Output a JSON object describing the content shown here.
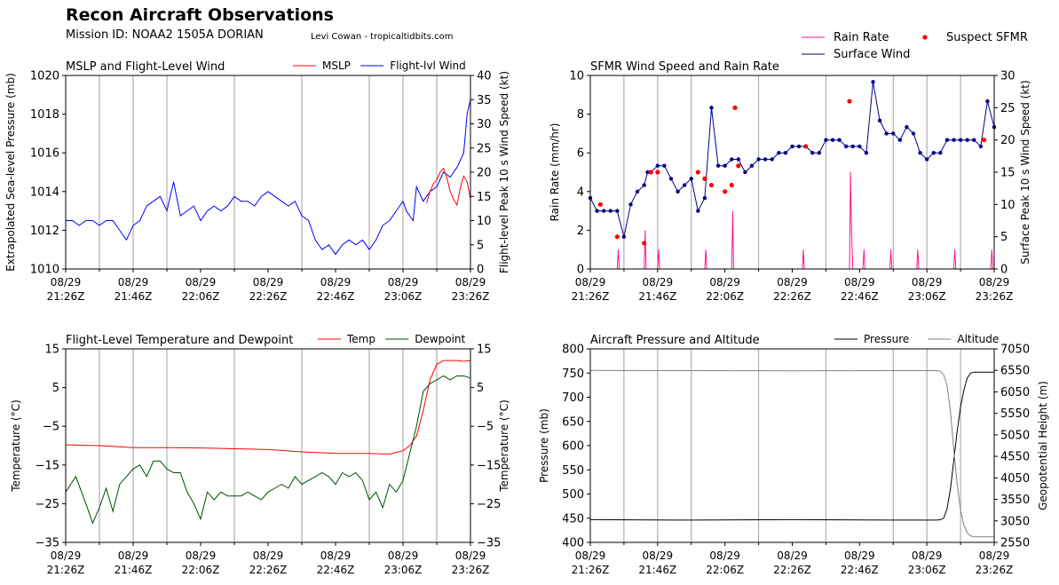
{
  "header": {
    "title": "Recon Aircraft Observations",
    "mission": "Mission ID: NOAA2 1505A DORIAN",
    "credit": "Levi Cowan - tropicaltidbits.com"
  },
  "time_ticks": [
    {
      "date": "08/29",
      "time": "21:26Z"
    },
    {
      "date": "08/29",
      "time": "21:46Z"
    },
    {
      "date": "08/29",
      "time": "22:06Z"
    },
    {
      "date": "08/29",
      "time": "22:26Z"
    },
    {
      "date": "08/29",
      "time": "22:46Z"
    },
    {
      "date": "08/29",
      "time": "23:06Z"
    },
    {
      "date": "08/29",
      "time": "23:26Z"
    }
  ],
  "colors": {
    "mslp": "#ff0000",
    "wind": "#0000ff",
    "rain": "#ff1493",
    "sfmr": "#00008b",
    "suspect": "#ff0000",
    "temp": "#ff0000",
    "dew": "#004d00",
    "pressure": "#000000",
    "altitude": "#808080",
    "grid": "#a0a0a0"
  },
  "chart_data": [
    {
      "id": "p1",
      "type": "line",
      "title": "MSLP and Flight-Level Wind",
      "ylabel": "Extrapolated Sea-level Pressure (mb)",
      "y2label": "Flight-level Peak 10 s Wind Speed (kt)",
      "xlim": [
        0,
        120
      ],
      "ylim": [
        1010,
        1020
      ],
      "y2lim": [
        0,
        40
      ],
      "yticks": [
        "1010",
        "1012",
        "1014",
        "1016",
        "1018",
        "1020"
      ],
      "y2ticks": [
        "0",
        "5",
        "10",
        "15",
        "20",
        "25",
        "30",
        "35",
        "40"
      ],
      "legend": [
        {
          "label": "MSLP",
          "color": "#ff0000"
        },
        {
          "label": "Flight-lvl Wind",
          "color": "#0000ff"
        }
      ],
      "series": [
        {
          "name": "Flight-lvl Wind",
          "axis": "y2",
          "color": "#0000ff",
          "x": [
            0,
            2,
            4,
            6,
            8,
            10,
            12,
            14,
            16,
            18,
            20,
            22,
            24,
            26,
            28,
            30,
            32,
            34,
            36,
            38,
            40,
            42,
            44,
            46,
            48,
            50,
            52,
            54,
            56,
            58,
            60,
            62,
            64,
            66,
            68,
            70,
            72,
            74,
            76,
            78,
            80,
            82,
            84,
            86,
            88,
            90,
            92,
            94,
            96,
            98,
            100,
            101,
            102,
            103,
            104,
            106,
            108,
            110,
            112,
            114,
            116,
            118,
            119,
            120
          ],
          "y": [
            10,
            10,
            9,
            10,
            10,
            9,
            10,
            10,
            8,
            6,
            9,
            10,
            13,
            14,
            15,
            12,
            18,
            11,
            12,
            13,
            10,
            12,
            13,
            12,
            13,
            15,
            14,
            14,
            13,
            15,
            16,
            15,
            14,
            13,
            14,
            11,
            10,
            6,
            4,
            5,
            3,
            5,
            6,
            5,
            6,
            4,
            6,
            9,
            10,
            12,
            14,
            12,
            11,
            10,
            17,
            14,
            16,
            17,
            20,
            19,
            21,
            24,
            32,
            35
          ]
        },
        {
          "name": "MSLP",
          "axis": "y",
          "color": "#ff0000",
          "x": [
            107,
            108,
            109,
            110,
            111,
            112,
            113,
            114,
            115,
            116,
            117,
            118,
            119,
            120
          ],
          "y": [
            1013.4,
            1014.0,
            1014.4,
            1014.6,
            1015.0,
            1015.2,
            1014.7,
            1014.0,
            1013.6,
            1013.3,
            1014.2,
            1014.8,
            1014.5,
            1013.6
          ]
        }
      ]
    },
    {
      "id": "p2",
      "type": "line",
      "title": "SFMR Wind Speed and Rain Rate",
      "ylabel": "Rain Rate (mm/hr)",
      "y2label": "Surface Peak 10 s Wind Speed (kt)",
      "xlim": [
        0,
        120
      ],
      "ylim": [
        0,
        10
      ],
      "y2lim": [
        0,
        30
      ],
      "yticks": [
        "0",
        "2",
        "4",
        "6",
        "8",
        "10"
      ],
      "y2ticks": [
        "0",
        "5",
        "10",
        "15",
        "20",
        "25",
        "30"
      ],
      "legend": [
        {
          "label": "Rain Rate",
          "color": "#ff1493"
        },
        {
          "label": "Suspect SFMR",
          "color": "#ff0000"
        },
        {
          "label": "Surface Wind",
          "color": "#00008b"
        }
      ],
      "series": [
        {
          "name": "Surface Wind",
          "axis": "y2",
          "color": "#00008b",
          "markers": true,
          "x": [
            0,
            2,
            4,
            6,
            8,
            10,
            12,
            14,
            16,
            17,
            18,
            20,
            22,
            24,
            26,
            28,
            30,
            32,
            34,
            36,
            38,
            40,
            42,
            44,
            46,
            48,
            50,
            52,
            54,
            56,
            58,
            60,
            62,
            64,
            66,
            68,
            70,
            72,
            74,
            76,
            78,
            80,
            82,
            84,
            86,
            88,
            90,
            92,
            94,
            96,
            98,
            100,
            102,
            104,
            106,
            108,
            110,
            112,
            114,
            116,
            118,
            120
          ],
          "y": [
            11,
            9,
            9,
            9,
            9,
            5,
            10,
            12,
            13,
            15,
            15,
            16,
            16,
            14,
            12,
            13,
            14,
            9,
            11,
            25,
            16,
            16,
            17,
            17,
            15,
            16,
            17,
            17,
            17,
            18,
            18,
            19,
            19,
            19,
            18,
            18,
            20,
            20,
            20,
            19,
            19,
            19,
            18,
            29,
            23,
            21,
            21,
            20,
            22,
            21,
            18,
            17,
            18,
            18,
            20,
            20,
            20,
            20,
            20,
            19,
            26,
            22
          ]
        },
        {
          "name": "Rain Rate",
          "axis": "y",
          "color": "#ff1493",
          "x": [
            0,
            8,
            8.3,
            8.6,
            16,
            16.3,
            16.6,
            20,
            20.3,
            20.6,
            34,
            34.3,
            34.6,
            42,
            42.3,
            42.6,
            63,
            63.3,
            63.6,
            77,
            77.3,
            77.6,
            78,
            81,
            81.3,
            81.6,
            89,
            89.3,
            89.6,
            97,
            97.3,
            97.6,
            108,
            108.3,
            108.6,
            119,
            119.3,
            119.6,
            120
          ],
          "y": [
            0,
            0,
            1,
            0,
            0,
            2,
            0,
            0,
            1,
            0,
            0,
            1,
            0,
            0,
            3,
            0,
            0,
            1,
            0,
            0,
            5,
            2,
            0,
            0,
            1,
            0,
            0,
            1,
            0,
            0,
            1,
            0,
            0,
            1,
            0,
            0,
            1,
            0,
            0
          ]
        },
        {
          "name": "Suspect SFMR",
          "axis": "y2",
          "color": "#ff0000",
          "scatter": true,
          "x": [
            3,
            8,
            16,
            18,
            20,
            32,
            34,
            36,
            40,
            42,
            43,
            44,
            64,
            77,
            117
          ],
          "y": [
            10,
            5,
            4,
            15,
            15,
            15,
            14,
            13,
            12,
            13,
            25,
            16,
            19,
            26,
            20
          ]
        }
      ]
    },
    {
      "id": "p3",
      "type": "line",
      "title": "Flight-Level Temperature and Dewpoint",
      "ylabel": "Temperature (°C)",
      "y2label": "Temperature (°C)",
      "xlim": [
        0,
        120
      ],
      "ylim": [
        -35,
        15
      ],
      "y2lim": [
        -35,
        15
      ],
      "yticks": [
        "−35",
        "−25",
        "−15",
        "−5",
        "5",
        "15"
      ],
      "y2ticks": [
        "−35",
        "−25",
        "−15",
        "−5",
        "5",
        "15"
      ],
      "legend": [
        {
          "label": "Temp",
          "color": "#ff0000"
        },
        {
          "label": "Dewpoint",
          "color": "#004d00"
        }
      ],
      "series": [
        {
          "name": "Temp",
          "axis": "y",
          "color": "#ff0000",
          "x": [
            0,
            10,
            20,
            30,
            40,
            50,
            60,
            70,
            80,
            90,
            96,
            100,
            102,
            104,
            106,
            108,
            110,
            112,
            114,
            116,
            118,
            120
          ],
          "y": [
            -9.8,
            -10,
            -10.5,
            -10.5,
            -10.6,
            -10.8,
            -11,
            -11.6,
            -12,
            -12,
            -12.2,
            -11.3,
            -10,
            -7.5,
            -1,
            7,
            11,
            12,
            12,
            12,
            11.8,
            12
          ]
        },
        {
          "name": "Dewpoint",
          "axis": "y",
          "color": "#004d00",
          "x": [
            0,
            3,
            6,
            8,
            10,
            12,
            14,
            16,
            18,
            20,
            22,
            24,
            26,
            28,
            30,
            32,
            34,
            36,
            38,
            40,
            42,
            44,
            46,
            48,
            50,
            52,
            54,
            56,
            58,
            60,
            62,
            64,
            66,
            68,
            70,
            72,
            74,
            76,
            78,
            80,
            82,
            84,
            86,
            88,
            90,
            92,
            94,
            96,
            98,
            100,
            102,
            104,
            106,
            108,
            110,
            112,
            114,
            116,
            118,
            120
          ],
          "y": [
            -22,
            -18,
            -25,
            -30,
            -26,
            -21,
            -27,
            -20,
            -18,
            -16,
            -15,
            -18,
            -14,
            -14,
            -16,
            -17,
            -17,
            -22,
            -25,
            -29,
            -22,
            -24,
            -22,
            -23,
            -23,
            -23,
            -22,
            -23,
            -24,
            -22,
            -21,
            -20,
            -21,
            -18,
            -20,
            -19,
            -18,
            -17,
            -18,
            -20,
            -17,
            -18,
            -17,
            -19,
            -24,
            -22,
            -26,
            -20,
            -22,
            -19,
            -12,
            -5,
            4,
            6,
            7,
            8,
            7,
            8,
            8,
            7.5
          ]
        }
      ]
    },
    {
      "id": "p4",
      "type": "line",
      "title": "Aircraft Pressure and Altitude",
      "ylabel": "Pressure (mb)",
      "y2label": "Geopotential Height (m)",
      "xlim": [
        0,
        120
      ],
      "ylim": [
        400,
        800
      ],
      "y2lim": [
        2550,
        7050
      ],
      "yticks": [
        "400",
        "450",
        "500",
        "550",
        "600",
        "650",
        "700",
        "750",
        "800"
      ],
      "y2ticks": [
        "2550",
        "3050",
        "3550",
        "4050",
        "4550",
        "5050",
        "5550",
        "6050",
        "6550",
        "7050"
      ],
      "legend": [
        {
          "label": "Pressure",
          "color": "#000000"
        },
        {
          "label": "Altitude",
          "color": "#808080"
        }
      ],
      "series": [
        {
          "name": "Pressure",
          "axis": "y",
          "color": "#000000",
          "x": [
            0,
            30,
            60,
            90,
            103,
            104,
            105,
            106,
            107,
            108,
            109,
            110,
            111,
            112,
            113,
            114,
            115,
            116,
            118,
            120
          ],
          "y": [
            447,
            446,
            447,
            446,
            446,
            447,
            450,
            470,
            510,
            570,
            630,
            680,
            715,
            740,
            750,
            752,
            752,
            752,
            752,
            752
          ]
        },
        {
          "name": "Altitude",
          "axis": "y2",
          "color": "#808080",
          "x": [
            0,
            30,
            60,
            90,
            103,
            104,
            105,
            106,
            107,
            108,
            109,
            110,
            111,
            112,
            113,
            114,
            115,
            116,
            118,
            120
          ],
          "y": [
            6550,
            6545,
            6540,
            6545,
            6545,
            6530,
            6450,
            6200,
            5600,
            4700,
            3900,
            3300,
            2950,
            2770,
            2700,
            2680,
            2680,
            2680,
            2680,
            2680
          ]
        }
      ]
    }
  ]
}
